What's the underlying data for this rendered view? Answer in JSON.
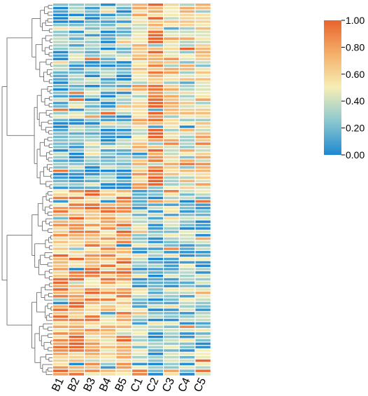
{
  "chart_data": {
    "type": "heatmap",
    "title": "",
    "xlabel": "",
    "ylabel": "",
    "columns": [
      "B1",
      "B2",
      "B3",
      "B4",
      "B5",
      "C1",
      "C2",
      "C3",
      "C4",
      "C5"
    ],
    "value_range": [
      0,
      1
    ],
    "colorbar": {
      "ticks": [
        "1.00",
        "0.80",
        "0.60",
        "0.40",
        "0.20",
        "0.00"
      ],
      "colors": [
        "#1e88d0",
        "#8bc8cf",
        "#f6eeb6",
        "#f4b06a",
        "#e8642c"
      ]
    },
    "row_dendrogram": true,
    "cluster_blocks": [
      {
        "rows": 55,
        "description_levels": {
          "B1": 0.15,
          "B2": 0.2,
          "B3": 0.2,
          "B4": 0.2,
          "B5": 0.22,
          "C1": 0.6,
          "C2": 0.9,
          "C3": 0.55,
          "C4": 0.5,
          "C5": 0.55
        }
      },
      {
        "rows": 55,
        "description_levels": {
          "B1": 0.75,
          "B2": 0.8,
          "B3": 0.75,
          "B4": 0.7,
          "B5": 0.75,
          "C1": 0.3,
          "C2": 0.15,
          "C3": 0.3,
          "C4": 0.25,
          "C5": 0.25
        }
      }
    ]
  }
}
